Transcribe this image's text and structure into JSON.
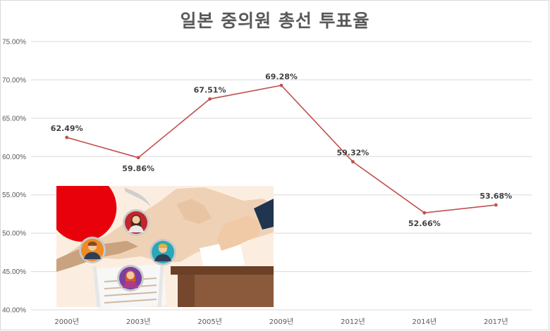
{
  "chart_data": {
    "type": "line",
    "title": "일본 중의원 총선 투표율",
    "categories": [
      "2000년",
      "2003년",
      "2005년",
      "2009년",
      "2012년",
      "2014년",
      "2017년"
    ],
    "series": [
      {
        "values": [
          62.49,
          59.86,
          67.51,
          69.28,
          59.32,
          52.66,
          53.68
        ],
        "labels": [
          "62.49%",
          "59.86%",
          "67.51%",
          "69.28%",
          "59.32%",
          "52.66%",
          "53.68%"
        ],
        "color": "#c0504d"
      }
    ],
    "ylim": [
      40,
      75
    ],
    "yticks": [
      40,
      45,
      50,
      55,
      60,
      65,
      70,
      75
    ],
    "ytick_labels": [
      "40.00%",
      "45.00%",
      "50.00%",
      "55.00%",
      "60.00%",
      "65.00%",
      "70.00%",
      "75.00%"
    ],
    "grid": true,
    "xlabel": "",
    "ylabel": ""
  },
  "illustration": {
    "subject": "election-voting-illustration",
    "colors": {
      "flag_red": "#e8000b",
      "map_beige": "#f3ddc6",
      "box_brown": "#8b5a3c",
      "sleeve_navy": "#1f3550",
      "paper": "#f7f7f7"
    }
  }
}
